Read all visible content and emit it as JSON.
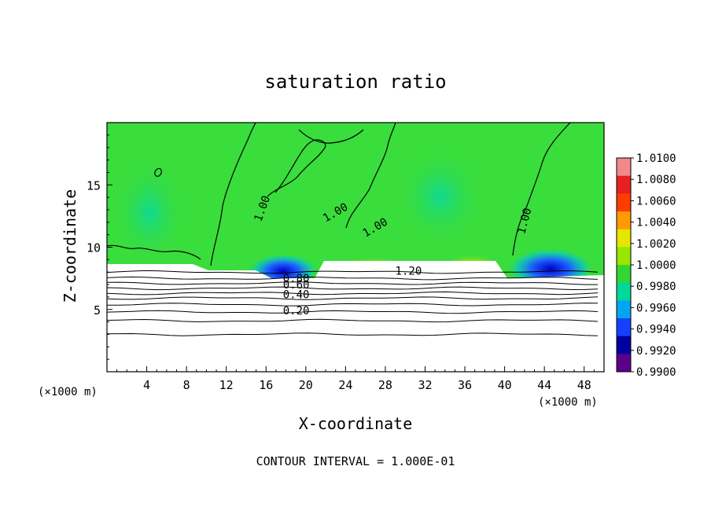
{
  "chart_data": {
    "type": "heatmap",
    "title": "saturation ratio",
    "xlabel": "X-coordinate",
    "ylabel": "Z-coordinate",
    "x_unit_left": "(×1000 m)",
    "x_unit_right": "(×1000 m)",
    "xlim": [
      0,
      50
    ],
    "ylim": [
      0,
      20
    ],
    "x_ticks": [
      4,
      8,
      12,
      16,
      20,
      24,
      28,
      32,
      36,
      40,
      44,
      48
    ],
    "y_ticks": [
      5,
      10,
      15
    ],
    "footer": "CONTOUR INTERVAL = 1.000E-01",
    "colorbar": {
      "min": 0.99,
      "max": 1.01,
      "labels": [
        "1.0100",
        "1.0080",
        "1.0060",
        "1.0040",
        "1.0020",
        "1.0000",
        "0.9980",
        "0.9960",
        "0.9940",
        "0.9920",
        "0.9900"
      ],
      "colors": [
        "#f08a8a",
        "#e62020",
        "#ff3c00",
        "#ff9a00",
        "#e6e600",
        "#9ae600",
        "#33d633",
        "#00d89a",
        "#00a6f0",
        "#1440ff",
        "#0000a0",
        "#5a008a"
      ]
    },
    "field_color": "#39dd3c",
    "contour_labels": [
      {
        "text": "1.00",
        "x": 15.5,
        "z": 12.0
      },
      {
        "text": "1.00",
        "x": 22.0,
        "z": 12.0
      },
      {
        "text": "1.00",
        "x": 26.0,
        "z": 10.8
      },
      {
        "text": "1.00",
        "x": 42.0,
        "z": 11.0
      },
      {
        "text": "1.20",
        "x": 29.0,
        "z": 7.8
      },
      {
        "text": "0.80",
        "x": 17.7,
        "z": 7.2
      },
      {
        "text": "0.60",
        "x": 17.7,
        "z": 6.7
      },
      {
        "text": "0.40",
        "x": 17.7,
        "z": 5.9
      },
      {
        "text": "0.20",
        "x": 17.7,
        "z": 4.6
      }
    ],
    "lower_contours_z": [
      8.0,
      7.5,
      7.1,
      6.7,
      6.3,
      5.9,
      5.4,
      4.8,
      4.1,
      3.0
    ]
  }
}
